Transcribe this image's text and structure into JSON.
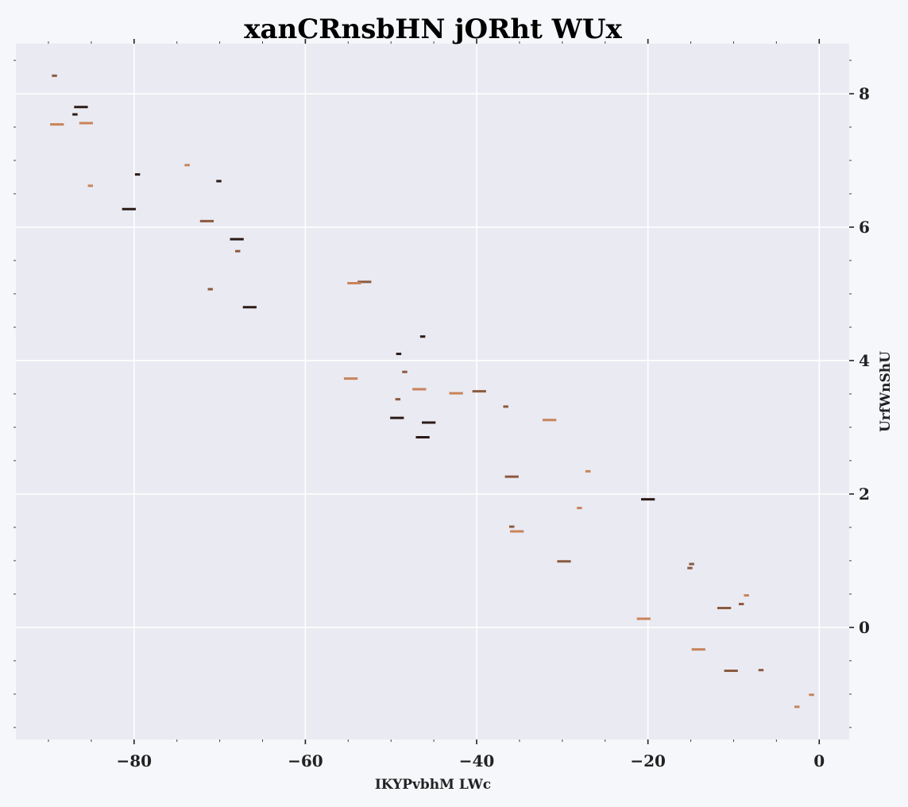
{
  "chart_data": {
    "type": "scatter",
    "title": "xanCRnsbHN jORht WUx",
    "xlabel": "IKYPvbhM LWc",
    "ylabel": "UrfWnShU",
    "xlim": [
      -93.8,
      3.5
    ],
    "ylim": [
      -1.68,
      8.75
    ],
    "xticks": [
      -80,
      -60,
      -40,
      -20,
      0
    ],
    "xtick_labels": [
      "−80",
      "−60",
      "−40",
      "−20",
      "0"
    ],
    "yticks": [
      0,
      2,
      4,
      6,
      8
    ],
    "ytick_labels": [
      "0",
      "2",
      "4",
      "6",
      "8"
    ],
    "y_axis_side": "right",
    "grid": true,
    "marker": "horizontal dash",
    "colors": {
      "dark": "#2b1a16",
      "medium": "#8b5a3f",
      "light": "#c8845a",
      "plot_background": "#eaeaf2",
      "figure_background": "#f5f7fb",
      "grid": "#ffffff"
    },
    "points": [
      {
        "x": -89.3,
        "y": 8.27,
        "c": "medium",
        "w": 0.6
      },
      {
        "x": -86.2,
        "y": 7.8,
        "c": "dark",
        "w": 1.6
      },
      {
        "x": -86.9,
        "y": 7.69,
        "c": "dark",
        "w": 0.6
      },
      {
        "x": -89.0,
        "y": 7.54,
        "c": "light",
        "w": 1.6
      },
      {
        "x": -85.6,
        "y": 7.56,
        "c": "light",
        "w": 1.6
      },
      {
        "x": -73.8,
        "y": 6.93,
        "c": "light",
        "w": 0.6
      },
      {
        "x": -79.6,
        "y": 6.79,
        "c": "dark",
        "w": 0.6
      },
      {
        "x": -85.1,
        "y": 6.62,
        "c": "light",
        "w": 0.6
      },
      {
        "x": -70.1,
        "y": 6.69,
        "c": "dark",
        "w": 0.6
      },
      {
        "x": -80.6,
        "y": 6.27,
        "c": "dark",
        "w": 1.6
      },
      {
        "x": -71.5,
        "y": 6.09,
        "c": "medium",
        "w": 1.6
      },
      {
        "x": -68.0,
        "y": 5.82,
        "c": "dark",
        "w": 1.6
      },
      {
        "x": -67.9,
        "y": 5.64,
        "c": "medium",
        "w": 0.6
      },
      {
        "x": -53.1,
        "y": 5.18,
        "c": "medium",
        "w": 1.6
      },
      {
        "x": -54.3,
        "y": 5.16,
        "c": "light",
        "w": 1.6
      },
      {
        "x": -71.1,
        "y": 5.07,
        "c": "medium",
        "w": 0.6
      },
      {
        "x": -66.5,
        "y": 4.8,
        "c": "dark",
        "w": 1.6
      },
      {
        "x": -46.3,
        "y": 4.36,
        "c": "dark",
        "w": 0.6
      },
      {
        "x": -49.1,
        "y": 4.1,
        "c": "dark",
        "w": 0.6
      },
      {
        "x": -48.4,
        "y": 3.83,
        "c": "medium",
        "w": 0.6
      },
      {
        "x": -54.7,
        "y": 3.73,
        "c": "light",
        "w": 1.6
      },
      {
        "x": -46.7,
        "y": 3.57,
        "c": "light",
        "w": 1.6
      },
      {
        "x": -39.7,
        "y": 3.54,
        "c": "medium",
        "w": 1.6
      },
      {
        "x": -42.4,
        "y": 3.51,
        "c": "light",
        "w": 1.6
      },
      {
        "x": -49.2,
        "y": 3.42,
        "c": "medium",
        "w": 0.6
      },
      {
        "x": -36.6,
        "y": 3.31,
        "c": "medium",
        "w": 0.6
      },
      {
        "x": -49.3,
        "y": 3.14,
        "c": "dark",
        "w": 1.6
      },
      {
        "x": -31.5,
        "y": 3.11,
        "c": "light",
        "w": 1.6
      },
      {
        "x": -45.6,
        "y": 3.07,
        "c": "dark",
        "w": 1.6
      },
      {
        "x": -46.3,
        "y": 2.85,
        "c": "dark",
        "w": 1.6
      },
      {
        "x": -27.0,
        "y": 2.34,
        "c": "light",
        "w": 0.6
      },
      {
        "x": -35.9,
        "y": 2.26,
        "c": "medium",
        "w": 1.6
      },
      {
        "x": -20.0,
        "y": 1.92,
        "c": "dark",
        "w": 1.6
      },
      {
        "x": -28.0,
        "y": 1.79,
        "c": "light",
        "w": 0.6
      },
      {
        "x": -35.9,
        "y": 1.51,
        "c": "medium",
        "w": 0.6
      },
      {
        "x": -35.3,
        "y": 1.44,
        "c": "light",
        "w": 1.6
      },
      {
        "x": -29.8,
        "y": 0.99,
        "c": "medium",
        "w": 1.6
      },
      {
        "x": -14.9,
        "y": 0.95,
        "c": "medium",
        "w": 0.6
      },
      {
        "x": -15.1,
        "y": 0.89,
        "c": "medium",
        "w": 0.6
      },
      {
        "x": -8.5,
        "y": 0.48,
        "c": "light",
        "w": 0.6
      },
      {
        "x": -9.1,
        "y": 0.35,
        "c": "medium",
        "w": 0.6
      },
      {
        "x": -11.1,
        "y": 0.29,
        "c": "medium",
        "w": 1.6
      },
      {
        "x": -20.5,
        "y": 0.13,
        "c": "light",
        "w": 1.6
      },
      {
        "x": -14.1,
        "y": -0.33,
        "c": "light",
        "w": 1.6
      },
      {
        "x": -10.3,
        "y": -0.65,
        "c": "medium",
        "w": 1.6
      },
      {
        "x": -6.8,
        "y": -0.64,
        "c": "medium",
        "w": 0.6
      },
      {
        "x": -0.9,
        "y": -1.01,
        "c": "light",
        "w": 0.6
      },
      {
        "x": -2.6,
        "y": -1.19,
        "c": "light",
        "w": 0.6
      }
    ]
  }
}
